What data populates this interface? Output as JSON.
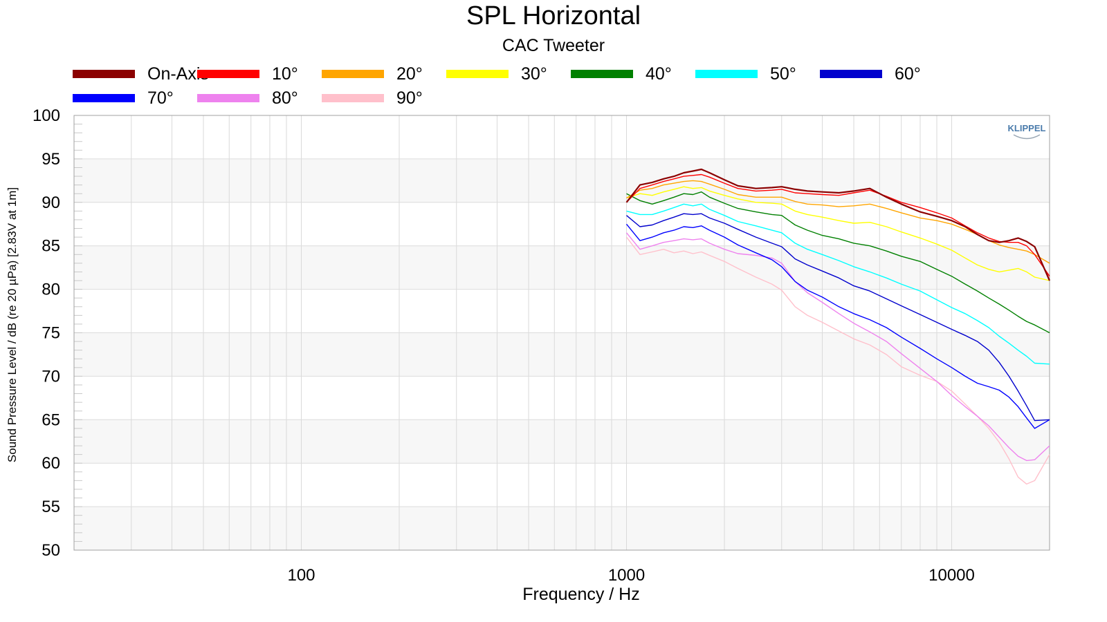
{
  "chart_data": {
    "type": "line",
    "title": "SPL Horizontal",
    "subtitle": "CAC Tweeter",
    "xlabel": "Frequency / Hz",
    "ylabel": "Sound Pressure Level / dB (re 20 µPa)  [2.83V at 1m]",
    "watermark": "KLIPPEL",
    "x_scale": "log",
    "xlim": [
      20,
      20000
    ],
    "ylim": [
      50,
      100
    ],
    "x_ticks": [
      "100",
      "1000",
      "10000"
    ],
    "y_ticks": [
      "50",
      "55",
      "60",
      "65",
      "70",
      "75",
      "80",
      "85",
      "90",
      "95",
      "100"
    ],
    "grid": true,
    "legend_position": "top",
    "x": [
      1000,
      1100,
      1200,
      1300,
      1400,
      1500,
      1600,
      1700,
      1800,
      2000,
      2200,
      2500,
      2800,
      3000,
      3300,
      3600,
      4000,
      4500,
      5000,
      5600,
      6300,
      7000,
      8000,
      9000,
      10000,
      11000,
      12000,
      13000,
      14000,
      15000,
      16000,
      17000,
      18000,
      20000
    ],
    "series": [
      {
        "name": "On-Axis",
        "color": "#8b0000",
        "values": [
          90.0,
          92.0,
          92.3,
          92.7,
          93.0,
          93.4,
          93.6,
          93.8,
          93.4,
          92.6,
          91.9,
          91.6,
          91.7,
          91.8,
          91.5,
          91.3,
          91.2,
          91.1,
          91.3,
          91.6,
          90.6,
          89.8,
          88.9,
          88.4,
          87.9,
          87.2,
          86.3,
          85.6,
          85.4,
          85.6,
          85.9,
          85.5,
          84.9,
          81.0
        ]
      },
      {
        "name": "10°",
        "color": "#ff0000",
        "values": [
          90.0,
          91.6,
          92.0,
          92.4,
          92.7,
          93.0,
          93.1,
          93.2,
          92.9,
          92.2,
          91.6,
          91.3,
          91.4,
          91.5,
          91.1,
          91.0,
          90.9,
          90.8,
          91.1,
          91.4,
          90.7,
          90.0,
          89.4,
          88.8,
          88.2,
          87.3,
          86.5,
          85.9,
          85.5,
          85.4,
          85.4,
          85.0,
          84.0,
          81.5
        ]
      },
      {
        "name": "20°",
        "color": "#ffa500",
        "values": [
          90.5,
          91.4,
          91.6,
          92.0,
          92.2,
          92.4,
          92.5,
          92.4,
          92.1,
          91.5,
          90.9,
          90.6,
          90.6,
          90.6,
          90.1,
          89.8,
          89.7,
          89.5,
          89.6,
          89.8,
          89.3,
          88.8,
          88.2,
          87.9,
          87.5,
          86.9,
          86.3,
          85.6,
          85.1,
          84.8,
          84.6,
          84.4,
          84.0,
          83.0
        ]
      },
      {
        "name": "30°",
        "color": "#ffff00",
        "values": [
          90.5,
          91.0,
          90.8,
          91.2,
          91.5,
          91.8,
          91.6,
          91.7,
          91.3,
          90.8,
          90.4,
          90.0,
          89.9,
          89.8,
          89.0,
          88.6,
          88.3,
          87.9,
          87.6,
          87.7,
          87.2,
          86.6,
          85.9,
          85.2,
          84.5,
          83.6,
          82.8,
          82.3,
          82.0,
          82.2,
          82.4,
          82.0,
          81.4,
          81.0
        ]
      },
      {
        "name": "40°",
        "color": "#008000",
        "values": [
          91.0,
          90.2,
          89.8,
          90.2,
          90.6,
          91.0,
          90.9,
          91.2,
          90.6,
          89.9,
          89.3,
          88.9,
          88.6,
          88.5,
          87.4,
          86.8,
          86.2,
          85.8,
          85.3,
          85.0,
          84.4,
          83.8,
          83.2,
          82.3,
          81.5,
          80.6,
          79.8,
          79.0,
          78.3,
          77.6,
          76.9,
          76.3,
          75.9,
          75.0
        ]
      },
      {
        "name": "50°",
        "color": "#00ffff",
        "values": [
          89.0,
          88.6,
          88.6,
          89.0,
          89.4,
          89.8,
          89.6,
          89.8,
          89.2,
          88.5,
          87.8,
          87.3,
          86.8,
          86.5,
          85.3,
          84.6,
          84.0,
          83.3,
          82.6,
          82.0,
          81.3,
          80.6,
          79.8,
          78.8,
          77.9,
          77.2,
          76.4,
          75.6,
          74.6,
          73.8,
          73.0,
          72.3,
          71.5,
          71.4
        ]
      },
      {
        "name": "60°",
        "color": "#0000cd",
        "values": [
          88.5,
          87.2,
          87.4,
          87.9,
          88.3,
          88.7,
          88.6,
          88.7,
          88.2,
          87.6,
          86.9,
          86.0,
          85.3,
          84.9,
          83.5,
          82.8,
          82.1,
          81.3,
          80.4,
          79.8,
          78.9,
          78.1,
          77.1,
          76.2,
          75.4,
          74.7,
          74.0,
          73.0,
          71.6,
          70.0,
          68.3,
          66.6,
          64.9,
          65.0
        ]
      },
      {
        "name": "70°",
        "color": "#0000ff",
        "values": [
          87.5,
          85.6,
          86.0,
          86.5,
          86.8,
          87.2,
          87.1,
          87.3,
          86.8,
          86.0,
          85.1,
          84.2,
          83.4,
          82.6,
          80.9,
          79.9,
          79.1,
          78.0,
          77.2,
          76.5,
          75.6,
          74.5,
          73.2,
          72.0,
          71.0,
          70.0,
          69.2,
          68.8,
          68.4,
          67.6,
          66.5,
          65.2,
          64.0,
          65.0
        ]
      },
      {
        "name": "80°",
        "color": "#ee82ee",
        "values": [
          86.5,
          84.6,
          85.0,
          85.4,
          85.6,
          85.8,
          85.7,
          85.8,
          85.3,
          84.6,
          84.1,
          83.9,
          83.6,
          83.0,
          80.9,
          79.6,
          78.5,
          77.2,
          76.1,
          75.1,
          74.0,
          72.6,
          70.9,
          69.4,
          67.8,
          66.5,
          65.4,
          64.3,
          63.0,
          61.8,
          60.8,
          60.3,
          60.4,
          62.0
        ]
      },
      {
        "name": "90°",
        "color": "#ffc0cb",
        "values": [
          86.0,
          84.0,
          84.3,
          84.6,
          84.2,
          84.4,
          84.1,
          84.3,
          83.9,
          83.2,
          82.4,
          81.4,
          80.6,
          79.9,
          78.0,
          77.0,
          76.2,
          75.2,
          74.3,
          73.6,
          72.5,
          71.1,
          70.1,
          69.4,
          68.3,
          66.8,
          65.4,
          64.0,
          62.4,
          60.5,
          58.4,
          57.6,
          58.0,
          61.0
        ]
      }
    ]
  }
}
